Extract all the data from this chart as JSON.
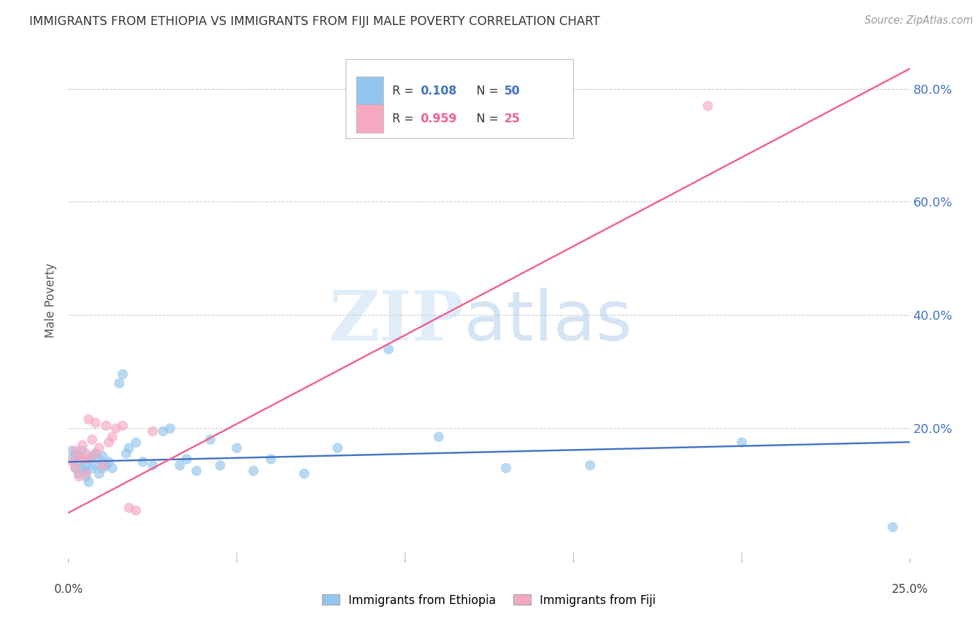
{
  "title": "IMMIGRANTS FROM ETHIOPIA VS IMMIGRANTS FROM FIJI MALE POVERTY CORRELATION CHART",
  "source": "Source: ZipAtlas.com",
  "ylabel": "Male Poverty",
  "xlim": [
    0.0,
    0.25
  ],
  "ylim": [
    -0.03,
    0.88
  ],
  "ethiopia_R": 0.108,
  "ethiopia_N": 50,
  "fiji_R": 0.959,
  "fiji_N": 25,
  "ethiopia_color": "#93C6EE",
  "fiji_color": "#F5A8C0",
  "ethiopia_line_color": "#4472C4",
  "fiji_line_color": "#F06090",
  "background_color": "#FFFFFF",
  "ethiopia_x": [
    0.001,
    0.001,
    0.002,
    0.002,
    0.003,
    0.003,
    0.003,
    0.004,
    0.004,
    0.005,
    0.005,
    0.005,
    0.006,
    0.006,
    0.007,
    0.007,
    0.008,
    0.008,
    0.009,
    0.009,
    0.01,
    0.01,
    0.011,
    0.012,
    0.013,
    0.015,
    0.016,
    0.017,
    0.018,
    0.02,
    0.022,
    0.025,
    0.028,
    0.03,
    0.033,
    0.035,
    0.038,
    0.042,
    0.045,
    0.05,
    0.055,
    0.06,
    0.07,
    0.08,
    0.095,
    0.11,
    0.13,
    0.155,
    0.2,
    0.245
  ],
  "ethiopia_y": [
    0.145,
    0.16,
    0.13,
    0.155,
    0.14,
    0.12,
    0.15,
    0.13,
    0.16,
    0.135,
    0.125,
    0.115,
    0.145,
    0.105,
    0.15,
    0.13,
    0.135,
    0.155,
    0.12,
    0.145,
    0.13,
    0.15,
    0.135,
    0.14,
    0.13,
    0.28,
    0.295,
    0.155,
    0.165,
    0.175,
    0.14,
    0.135,
    0.195,
    0.2,
    0.135,
    0.145,
    0.125,
    0.18,
    0.135,
    0.165,
    0.125,
    0.145,
    0.12,
    0.165,
    0.34,
    0.185,
    0.13,
    0.135,
    0.175,
    0.025
  ],
  "fiji_x": [
    0.001,
    0.002,
    0.002,
    0.003,
    0.003,
    0.004,
    0.004,
    0.005,
    0.005,
    0.006,
    0.006,
    0.007,
    0.008,
    0.008,
    0.009,
    0.01,
    0.011,
    0.012,
    0.013,
    0.014,
    0.016,
    0.018,
    0.02,
    0.025,
    0.19
  ],
  "fiji_y": [
    0.14,
    0.13,
    0.16,
    0.15,
    0.115,
    0.145,
    0.17,
    0.12,
    0.155,
    0.145,
    0.215,
    0.18,
    0.155,
    0.21,
    0.165,
    0.135,
    0.205,
    0.175,
    0.185,
    0.2,
    0.205,
    0.06,
    0.055,
    0.195,
    0.77
  ],
  "eth_line_x": [
    0.0,
    0.25
  ],
  "eth_line_y": [
    0.14,
    0.175
  ],
  "fiji_line_x": [
    0.0,
    0.25
  ],
  "fiji_line_y": [
    0.05,
    0.835
  ],
  "gridline_color": "#CCCCCC",
  "tick_color": "#AAAAAA",
  "right_label_color": "#4472C4",
  "title_color": "#333333",
  "source_color": "#999999",
  "ylabel_color": "#555555"
}
